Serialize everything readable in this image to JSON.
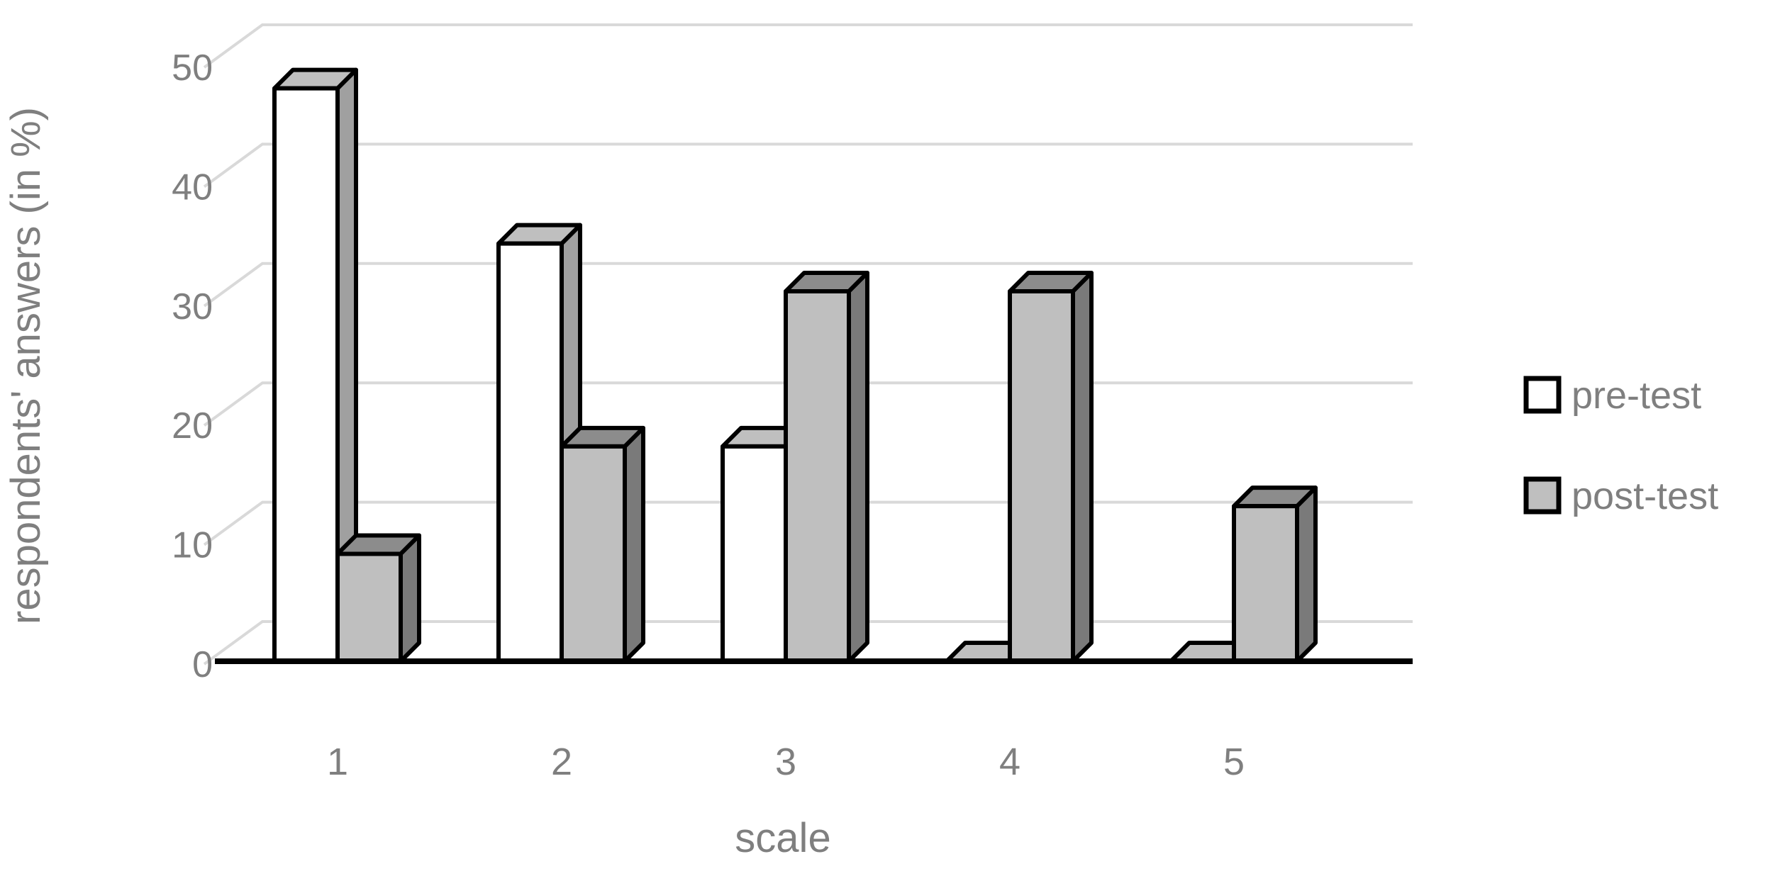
{
  "chart_data": {
    "type": "bar",
    "subtype": "3d-clustered-column",
    "title": "",
    "xlabel": "scale",
    "ylabel": "respondents' answers  (in %)",
    "categories": [
      "1",
      "2",
      "3",
      "4",
      "5"
    ],
    "series": [
      {
        "name": "pre-test",
        "values": [
          48,
          35,
          18,
          0,
          0
        ]
      },
      {
        "name": "post-test",
        "values": [
          9,
          18,
          31,
          31,
          13
        ]
      }
    ],
    "ylim": [
      0,
      50
    ],
    "yticks": [
      0,
      10,
      20,
      30,
      40,
      50
    ],
    "grid": "on",
    "legend_position": "right"
  },
  "legend": {
    "items": [
      {
        "label": "pre-test",
        "swatch_fill": "#ffffff"
      },
      {
        "label": "post-test",
        "swatch_fill": "#bfbfbf"
      }
    ]
  },
  "colors": {
    "text": "#7f7f7f",
    "gridline": "#d9d9d9",
    "outline": "#000000",
    "axis_line": "#000000",
    "pre_front": "#ffffff",
    "pre_top": "#bfbfbf",
    "pre_side": "#a0a0a0",
    "post_front": "#bfbfbf",
    "post_top": "#8c8c8c",
    "post_side": "#7a7a7a"
  }
}
